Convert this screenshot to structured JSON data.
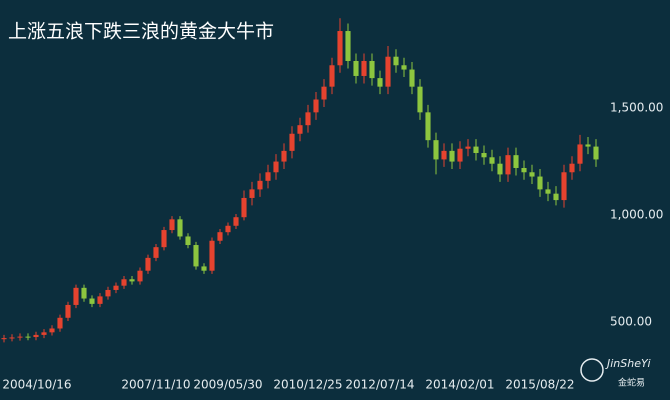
{
  "chart_data": {
    "type": "candlestick",
    "title": "上涨五浪下跌三浪的黄金大牛市",
    "categories": [
      "2004/10/16",
      null,
      null,
      null,
      null,
      null,
      null,
      null,
      null,
      null,
      null,
      null,
      null,
      null,
      null,
      null,
      null,
      null,
      null,
      "2007/11/10",
      null,
      null,
      null,
      null,
      null,
      null,
      null,
      null,
      "2009/05/30",
      null,
      null,
      null,
      null,
      null,
      null,
      null,
      null,
      null,
      "2010/12/25",
      null,
      null,
      null,
      null,
      null,
      null,
      null,
      null,
      "2012/07/14",
      null,
      null,
      null,
      null,
      null,
      null,
      null,
      null,
      null,
      "2014/02/01",
      null,
      null,
      null,
      null,
      null,
      null,
      null,
      null,
      null,
      "2015/08/22",
      null,
      null,
      null,
      null,
      null,
      null,
      null
    ],
    "open": [
      420,
      425,
      428,
      432,
      430,
      440,
      452,
      470,
      520,
      580,
      660,
      610,
      585,
      620,
      650,
      670,
      700,
      690,
      740,
      800,
      850,
      930,
      980,
      900,
      860,
      760,
      740,
      880,
      920,
      950,
      990,
      1080,
      1120,
      1160,
      1200,
      1250,
      1300,
      1380,
      1420,
      1480,
      1540,
      1600,
      1700,
      1860,
      1720,
      1650,
      1720,
      1640,
      1600,
      1740,
      1700,
      1680,
      1600,
      1480,
      1350,
      1260,
      1300,
      1250,
      1310,
      1320,
      1290,
      1270,
      1240,
      1190,
      1280,
      1220,
      1200,
      1180,
      1120,
      1100,
      1070,
      1200,
      1240,
      1330,
      1320
    ],
    "high": [
      440,
      443,
      447,
      447,
      455,
      467,
      485,
      535,
      595,
      675,
      675,
      625,
      635,
      665,
      685,
      715,
      715,
      755,
      815,
      865,
      945,
      995,
      995,
      915,
      875,
      775,
      895,
      935,
      965,
      1005,
      1115,
      1155,
      1195,
      1235,
      1285,
      1335,
      1415,
      1455,
      1515,
      1575,
      1635,
      1735,
      1920,
      1895,
      1755,
      1755,
      1755,
      1675,
      1790,
      1775,
      1735,
      1715,
      1635,
      1515,
      1385,
      1335,
      1335,
      1345,
      1355,
      1355,
      1325,
      1305,
      1275,
      1315,
      1315,
      1255,
      1235,
      1215,
      1155,
      1135,
      1235,
      1275,
      1375,
      1365,
      1355
    ],
    "low": [
      405,
      410,
      413,
      415,
      415,
      425,
      437,
      455,
      505,
      565,
      595,
      570,
      570,
      605,
      635,
      655,
      675,
      675,
      725,
      785,
      835,
      915,
      885,
      845,
      745,
      725,
      725,
      865,
      905,
      935,
      975,
      1045,
      1085,
      1125,
      1165,
      1215,
      1265,
      1345,
      1385,
      1445,
      1505,
      1565,
      1665,
      1685,
      1615,
      1615,
      1605,
      1565,
      1565,
      1665,
      1645,
      1565,
      1445,
      1315,
      1190,
      1225,
      1215,
      1215,
      1275,
      1255,
      1235,
      1205,
      1155,
      1155,
      1185,
      1165,
      1145,
      1085,
      1065,
      1045,
      1035,
      1165,
      1205,
      1285,
      1225
    ],
    "close": [
      425,
      428,
      432,
      430,
      440,
      452,
      470,
      520,
      580,
      660,
      610,
      585,
      620,
      650,
      670,
      700,
      690,
      740,
      800,
      850,
      930,
      980,
      900,
      860,
      760,
      740,
      880,
      920,
      950,
      990,
      1080,
      1120,
      1160,
      1200,
      1250,
      1300,
      1380,
      1420,
      1480,
      1540,
      1600,
      1700,
      1860,
      1720,
      1650,
      1720,
      1640,
      1600,
      1740,
      1700,
      1680,
      1600,
      1480,
      1350,
      1260,
      1300,
      1250,
      1310,
      1320,
      1290,
      1270,
      1240,
      1190,
      1280,
      1220,
      1200,
      1180,
      1120,
      1100,
      1070,
      1200,
      1240,
      1330,
      1320,
      1260
    ],
    "up_color": "#e5432f",
    "down_color": "#8dc63f",
    "ylim": [
      276,
      2005
    ],
    "yticks": [
      {
        "value": 500,
        "label": "500.00"
      },
      {
        "value": 1000,
        "label": "1,000.00"
      },
      {
        "value": 1500,
        "label": "1,500.00"
      }
    ]
  },
  "watermark": {
    "text": "JinSheYi",
    "subtext": "金蛇易"
  }
}
